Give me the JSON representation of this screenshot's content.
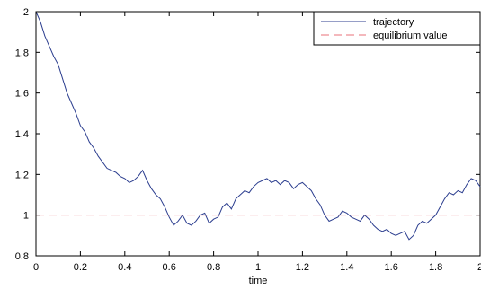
{
  "chart_data": {
    "type": "line",
    "title": "",
    "xlabel": "time",
    "ylabel": "",
    "xlim": [
      0,
      2
    ],
    "ylim": [
      0.8,
      2
    ],
    "xticks": [
      0,
      0.2,
      0.4,
      0.6,
      0.8,
      1,
      1.2,
      1.4,
      1.6,
      1.8,
      2
    ],
    "xtick_labels": [
      "0",
      "0.2",
      "0.4",
      "0.6",
      "0.8",
      "1",
      "1.2",
      "1.4",
      "1.6",
      "1.8",
      "2"
    ],
    "yticks": [
      0.8,
      1,
      1.2,
      1.4,
      1.6,
      1.8,
      2
    ],
    "ytick_labels": [
      "0.8",
      "1",
      "1.2",
      "1.4",
      "1.6",
      "1.8",
      "2"
    ],
    "grid": false,
    "legend_position": "top-right",
    "series": [
      {
        "name": "trajectory",
        "style": "solid",
        "color": "#2c3e8f",
        "x": [
          0,
          0.02,
          0.04,
          0.06,
          0.08,
          0.1,
          0.12,
          0.14,
          0.16,
          0.18,
          0.2,
          0.22,
          0.24,
          0.26,
          0.28,
          0.3,
          0.32,
          0.34,
          0.36,
          0.38,
          0.4,
          0.42,
          0.44,
          0.46,
          0.48,
          0.5,
          0.52,
          0.54,
          0.56,
          0.58,
          0.6,
          0.62,
          0.64,
          0.66,
          0.68,
          0.7,
          0.72,
          0.74,
          0.76,
          0.78,
          0.8,
          0.82,
          0.84,
          0.86,
          0.88,
          0.9,
          0.92,
          0.94,
          0.96,
          0.98,
          1.0,
          1.02,
          1.04,
          1.06,
          1.08,
          1.1,
          1.12,
          1.14,
          1.16,
          1.18,
          1.2,
          1.22,
          1.24,
          1.26,
          1.28,
          1.3,
          1.32,
          1.34,
          1.36,
          1.38,
          1.4,
          1.42,
          1.44,
          1.46,
          1.48,
          1.5,
          1.52,
          1.54,
          1.56,
          1.58,
          1.6,
          1.62,
          1.64,
          1.66,
          1.68,
          1.7,
          1.72,
          1.74,
          1.76,
          1.78,
          1.8,
          1.82,
          1.84,
          1.86,
          1.88,
          1.9,
          1.92,
          1.94,
          1.96,
          1.98,
          2.0
        ],
        "y": [
          2.0,
          1.95,
          1.88,
          1.83,
          1.78,
          1.74,
          1.67,
          1.6,
          1.55,
          1.5,
          1.44,
          1.41,
          1.36,
          1.33,
          1.29,
          1.26,
          1.23,
          1.22,
          1.21,
          1.19,
          1.18,
          1.16,
          1.17,
          1.19,
          1.22,
          1.17,
          1.13,
          1.1,
          1.08,
          1.04,
          0.99,
          0.95,
          0.97,
          1.0,
          0.96,
          0.95,
          0.97,
          1.0,
          1.01,
          0.96,
          0.98,
          0.99,
          1.04,
          1.06,
          1.03,
          1.08,
          1.1,
          1.12,
          1.11,
          1.14,
          1.16,
          1.17,
          1.18,
          1.16,
          1.17,
          1.15,
          1.17,
          1.16,
          1.13,
          1.15,
          1.16,
          1.14,
          1.12,
          1.08,
          1.05,
          1.0,
          0.97,
          0.98,
          0.99,
          1.02,
          1.01,
          0.99,
          0.98,
          0.97,
          1.0,
          0.98,
          0.95,
          0.93,
          0.92,
          0.93,
          0.91,
          0.9,
          0.91,
          0.92,
          0.88,
          0.9,
          0.95,
          0.97,
          0.96,
          0.98,
          1.0,
          1.04,
          1.08,
          1.11,
          1.1,
          1.12,
          1.11,
          1.15,
          1.18,
          1.17,
          1.14
        ]
      },
      {
        "name": "equilibrium value",
        "style": "dashed",
        "color": "#e8707a",
        "x": [
          0,
          2
        ],
        "y": [
          1,
          1
        ]
      }
    ]
  }
}
